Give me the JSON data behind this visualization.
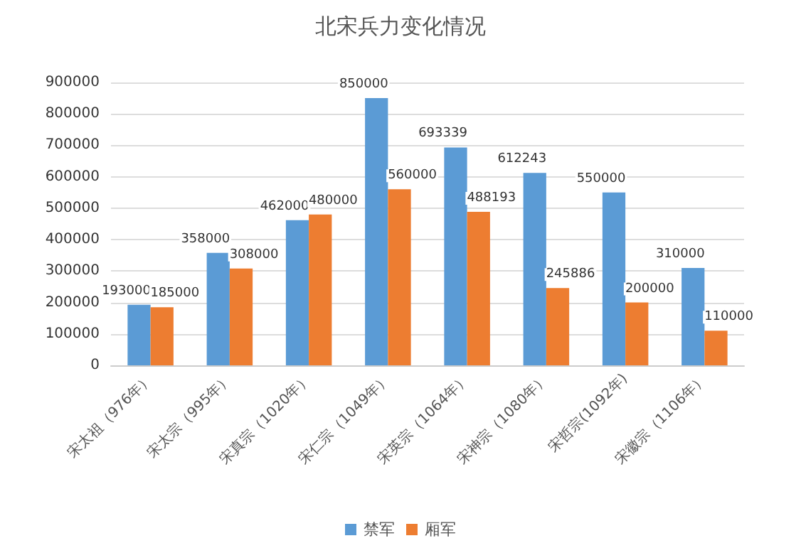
{
  "chart_data": {
    "type": "bar",
    "title": "北宋兵力变化情况",
    "categories": [
      "宋太祖（976年）",
      "宋太宗（995年）",
      "宋真宗（1020年）",
      "宋仁宗（1049年）",
      "宋英宗（1064年）",
      "宋神宗（1080年）",
      "宋哲宗(1092年)",
      "宋徽宗（1106年）"
    ],
    "series": [
      {
        "name": "禁军",
        "color": "#5b9bd5",
        "values": [
          193000,
          358000,
          462000,
          850000,
          693339,
          612243,
          550000,
          310000
        ]
      },
      {
        "name": "厢军",
        "color": "#ed7d31",
        "values": [
          185000,
          308000,
          480000,
          560000,
          488193,
          245886,
          200000,
          110000
        ]
      }
    ],
    "ylim": [
      0,
      900000
    ],
    "yticks": [
      0,
      100000,
      200000,
      300000,
      400000,
      500000,
      600000,
      700000,
      800000,
      900000
    ],
    "grid": "y",
    "legend": "bottom",
    "data_labels": true
  }
}
